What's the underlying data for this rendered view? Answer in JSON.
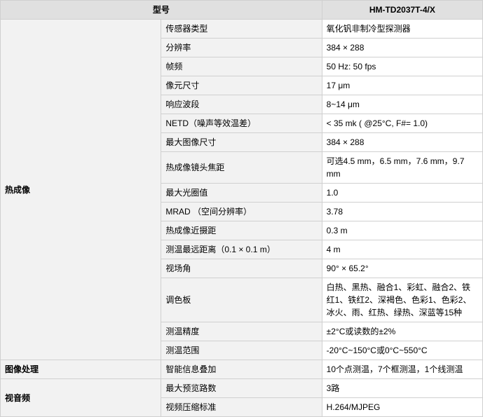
{
  "header": {
    "model_label": "型号",
    "model_value": "HM-TD2037T-4/X"
  },
  "sections": [
    {
      "category": "热成像",
      "rows": [
        {
          "param": "传感器类型",
          "value": "氧化钒非制冷型探测器"
        },
        {
          "param": "分辨率",
          "value": "384 × 288"
        },
        {
          "param": "帧频",
          "value": "50 Hz: 50 fps"
        },
        {
          "param": "像元尺寸",
          "value": "17 μm"
        },
        {
          "param": "响应波段",
          "value": "8~14 μm"
        },
        {
          "param": "NETD（噪声等效温差）",
          "value": "< 35 mk ( @25°C, F#= 1.0)"
        },
        {
          "param": "最大图像尺寸",
          "value": "384 × 288"
        },
        {
          "param": "热成像镜头焦距",
          "value": "可选4.5 mm，6.5 mm，7.6 mm，9.7 mm"
        },
        {
          "param": "最大光圈值",
          "value": "1.0"
        },
        {
          "param": "MRAD （空间分辨率）",
          "value": "3.78"
        },
        {
          "param": "热成像近摄距",
          "value": "0.3 m"
        },
        {
          "param": "测温最远距离（0.1 × 0.1 m）",
          "value": "4 m"
        },
        {
          "param": "视场角",
          "value": "90° × 65.2°"
        },
        {
          "param": "调色板",
          "value": "白热、黑热、融合1、彩虹、融合2、铁红1、铁红2、深褐色、色彩1、色彩2、冰火、雨、红热、绿热、深蓝等15种"
        },
        {
          "param": "测温精度",
          "value": "±2°C或读数的±2%"
        },
        {
          "param": "测温范围",
          "value": "-20°C~150°C或0°C~550°C"
        }
      ]
    },
    {
      "category": "图像处理",
      "rows": [
        {
          "param": "智能信息叠加",
          "value": "10个点测温，7个框测温，1个线测温"
        }
      ]
    },
    {
      "category": "视音频",
      "rows": [
        {
          "param": "最大预览路数",
          "value": "3路"
        },
        {
          "param": "视频压缩标准",
          "value": "H.264/MJPEG"
        }
      ]
    }
  ]
}
